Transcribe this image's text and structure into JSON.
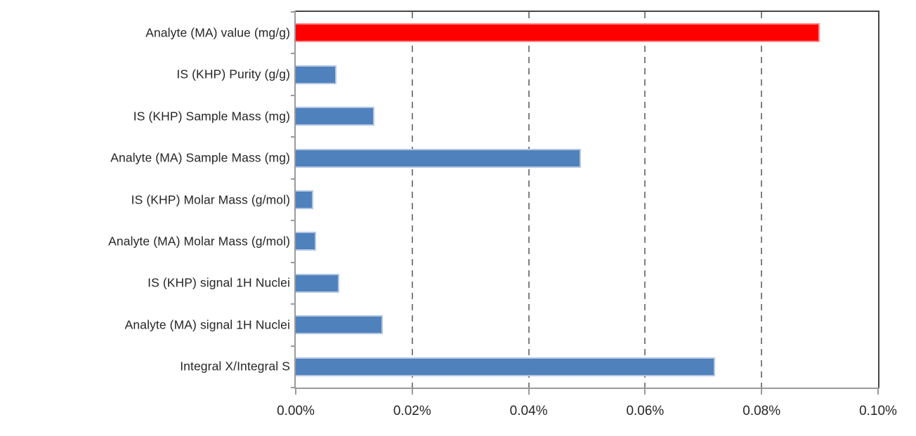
{
  "chart_data": {
    "type": "bar",
    "orientation": "horizontal",
    "title": "",
    "xlabel": "",
    "ylabel": "",
    "categories": [
      "Analyte (MA) value (mg/g)",
      "IS (KHP) Purity (g/g)",
      "IS (KHP) Sample Mass (mg)",
      "Analyte (MA) Sample Mass (mg)",
      "IS (KHP) Molar Mass (g/mol)",
      "Analyte (MA) Molar Mass (g/mol)",
      "IS (KHP) signal 1H Nuclei",
      "Analyte (MA) signal 1H Nuclei",
      "Integral X/Integral S"
    ],
    "values": [
      0.09,
      0.007,
      0.0135,
      0.049,
      0.003,
      0.0035,
      0.0075,
      0.015,
      0.072
    ],
    "value_unit": "%",
    "highlight_index": 0,
    "colors": {
      "default_bar": "#4f81bd",
      "highlight_bar": "#fe0000",
      "gridline": "#7f7f7f",
      "text": "#262626"
    },
    "xlim": [
      0.0,
      0.1
    ],
    "x_tick_values": [
      0.0,
      0.02,
      0.04,
      0.06,
      0.08,
      0.1
    ],
    "x_tick_labels": [
      "0.00%",
      "0.02%",
      "0.04%",
      "0.06%",
      "0.08%",
      "0.10%"
    ],
    "grid": "vertical-dashed",
    "legend": "none",
    "plot_background": "#ffffff"
  }
}
